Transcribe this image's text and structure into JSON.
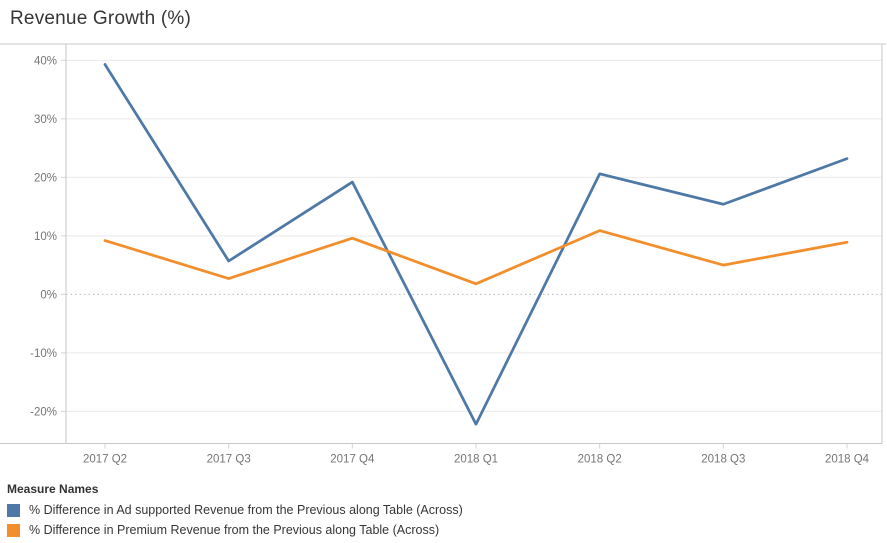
{
  "title": "Revenue Growth (%)",
  "chart_data": {
    "type": "line",
    "title": "Revenue Growth (%)",
    "categories": [
      "2017 Q2",
      "2017 Q3",
      "2017 Q4",
      "2018 Q1",
      "2018 Q2",
      "2018 Q3",
      "2018 Q4"
    ],
    "series": [
      {
        "name": "% Difference in Ad supported Revenue from the Previous along Table (Across)",
        "color": "#4e79a7",
        "values": [
          39.3,
          5.7,
          19.2,
          -22.2,
          20.6,
          15.4,
          23.2
        ]
      },
      {
        "name": "% Difference in Premium Revenue from the Previous along Table (Across)",
        "color": "#f28e2b",
        "values": [
          9.2,
          2.7,
          9.6,
          1.8,
          10.9,
          5.0,
          8.9
        ]
      }
    ],
    "xlabel": "",
    "ylabel": "",
    "ylim": [
      -25.5,
      42.8
    ],
    "y_ticks": [
      40,
      30,
      20,
      10,
      0,
      -10,
      -20
    ],
    "y_tick_labels": [
      "40%",
      "30%",
      "20%",
      "10%",
      "0%",
      "-10%",
      "-20%"
    ],
    "grid": true,
    "zero_line": "dotted",
    "legend_position": "bottom-left"
  },
  "legend": {
    "header": "Measure Names",
    "items": [
      {
        "label": "% Difference in Ad supported Revenue from the Previous along Table (Across)",
        "color": "#4e79a7"
      },
      {
        "label": "% Difference in Premium Revenue from the Previous along Table (Across)",
        "color": "#f28e2b"
      }
    ]
  },
  "colors": {
    "title_text": "#363636",
    "axis_text": "#757575",
    "gridline": "#e9e9e9",
    "border": "#c7c7c7",
    "zero_line": "#b7b7b7"
  }
}
